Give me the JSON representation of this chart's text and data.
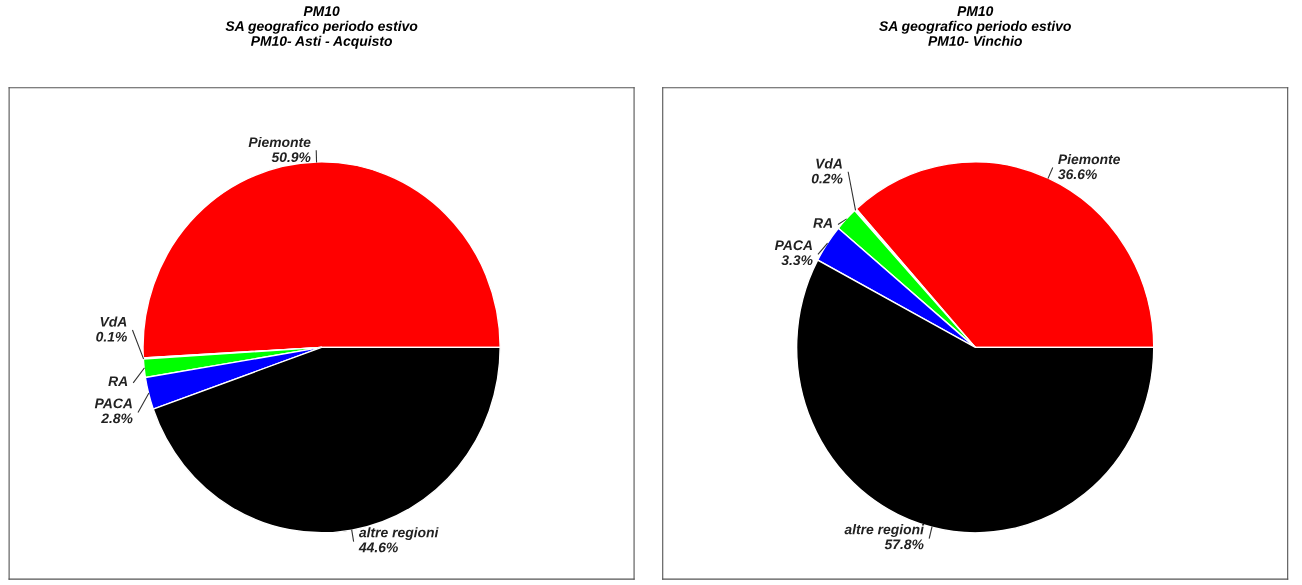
{
  "chart_data": [
    {
      "type": "pie",
      "title": "PM10\nSA geografico periodo estivo\nPM10- Asti - Acquisto",
      "categories": [
        "Piemonte",
        "VdA",
        "RA",
        "PACA",
        "altre regioni"
      ],
      "values": [
        50.9,
        0.1,
        1.6,
        2.8,
        44.6
      ],
      "value_labels": [
        "50.9%",
        "0.1%",
        null,
        "2.8%",
        "44.6%"
      ],
      "colors": [
        "#ff0000",
        "#ffffff",
        "#00ff00",
        "#0000ff",
        "#000000"
      ]
    },
    {
      "type": "pie",
      "title": "PM10\nSA geografico periodo estivo\nPM10- Vinchio",
      "categories": [
        "Piemonte",
        "VdA",
        "RA",
        "PACA",
        "altre regioni"
      ],
      "values": [
        36.6,
        0.2,
        2.1,
        3.3,
        57.8
      ],
      "value_labels": [
        "36.6%",
        "0.2%",
        null,
        "3.3%",
        "57.8%"
      ],
      "colors": [
        "#ff0000",
        "#ffffff",
        "#00ff00",
        "#0000ff",
        "#000000"
      ]
    }
  ]
}
